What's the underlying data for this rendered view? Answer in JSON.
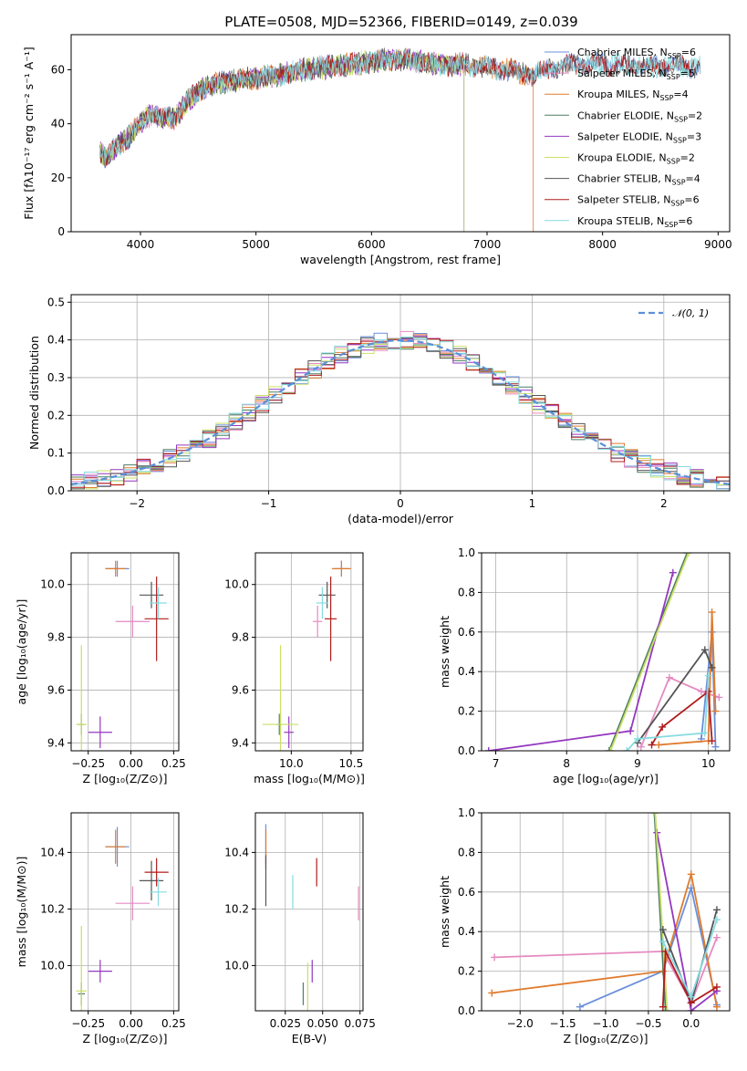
{
  "title": "PLATE=0508, MJD=52366, FIBERID=0149, z=0.039",
  "colors": {
    "Chabrier MILES": "#6a8fdb",
    "Salpeter MILES": "#e58ac0",
    "Kroupa MILES": "#e07b2c",
    "Chabrier ELODIE": "#4e7d62",
    "Salpeter ELODIE": "#9437c0",
    "Kroupa ELODIE": "#c8e066",
    "Chabrier STELIB": "#555555",
    "Salpeter STELIB": "#b01c1c",
    "Kroupa STELIB": "#86dbe0"
  },
  "chart_data": [
    {
      "id": "spectrum",
      "type": "line",
      "xlabel": "wavelength [Angstrom, rest frame]",
      "ylabel": "Flux [fλ10⁻¹⁷ erg cm⁻² s⁻¹ A⁻¹]",
      "xlim": [
        3400,
        9100
      ],
      "ylim": [
        0,
        73
      ],
      "xticks": [
        4000,
        5000,
        6000,
        7000,
        8000,
        9000
      ],
      "yticks": [
        0,
        20,
        40,
        60
      ],
      "legend_position": "top-right",
      "legend": [
        {
          "name": "Chabrier MILES",
          "nssp": "6"
        },
        {
          "name": "Salpeter MILES",
          "nssp": "5"
        },
        {
          "name": "Kroupa MILES",
          "nssp": "4"
        },
        {
          "name": "Chabrier ELODIE",
          "nssp": "2"
        },
        {
          "name": "Salpeter ELODIE",
          "nssp": "3"
        },
        {
          "name": "Kroupa ELODIE",
          "nssp": "2"
        },
        {
          "name": "Chabrier STELIB",
          "nssp": "4"
        },
        {
          "name": "Salpeter STELIB",
          "nssp": "6"
        },
        {
          "name": "Kroupa STELIB",
          "nssp": "6"
        }
      ],
      "continuum": {
        "x": [
          3650,
          3700,
          3800,
          3900,
          4000,
          4100,
          4200,
          4300,
          4400,
          4500,
          4600,
          4800,
          5000,
          5200,
          5400,
          5600,
          5800,
          6000,
          6200,
          6400,
          6600,
          6800,
          7000,
          7200,
          7400,
          7600,
          7800,
          8000,
          8200,
          8400,
          8600,
          8800
        ],
        "y": [
          30,
          27,
          32,
          35,
          40,
          44,
          42,
          42,
          48,
          52,
          54,
          56,
          57,
          58,
          60,
          61,
          62,
          63,
          64,
          63,
          62,
          62,
          61,
          60,
          58,
          61,
          62,
          62,
          62,
          61,
          62,
          61
        ]
      },
      "wavelength_end": {
        "Chabrier MILES": 8850,
        "Salpeter MILES": 7400,
        "Kroupa MILES": 7400,
        "Chabrier ELODIE": 6800,
        "Salpeter ELODIE": 6800,
        "Kroupa ELODIE": 6800,
        "Chabrier STELIB": 8850,
        "Salpeter STELIB": 8850,
        "Kroupa STELIB": 8850
      }
    },
    {
      "id": "residuals",
      "type": "histogram",
      "xlabel": "(data-model)/error",
      "ylabel": "Normed distribution",
      "xlim": [
        -2.5,
        2.5
      ],
      "ylim": [
        0,
        0.52
      ],
      "xticks": [
        -2,
        -1,
        0,
        1,
        2
      ],
      "yticks": [
        0.0,
        0.1,
        0.2,
        0.3,
        0.4,
        0.5
      ],
      "grid": true,
      "legend_position": "top-right",
      "reference_curve": "𝒩(0, 1)",
      "bin_width": 0.1
    },
    {
      "id": "age-vs-Z",
      "type": "scatter",
      "xlabel": "Z [log₁₀(Z/Z⊙)]",
      "ylabel": "age  [log₁₀(age/yr)]",
      "xlim": [
        -0.35,
        0.28
      ],
      "ylim": [
        9.37,
        10.12
      ],
      "xticks": [
        -0.25,
        0.0,
        0.25
      ],
      "yticks": [
        9.4,
        9.6,
        9.8,
        10.0
      ],
      "grid": true,
      "points": [
        {
          "model": "Chabrier MILES",
          "x": -0.08,
          "y": 10.06,
          "xerr": 0.07,
          "yerr": 0.03
        },
        {
          "model": "Salpeter MILES",
          "x": 0.01,
          "y": 9.86,
          "xerr": 0.1,
          "yerr": 0.06
        },
        {
          "model": "Kroupa MILES",
          "x": -0.09,
          "y": 10.06,
          "xerr": 0.06,
          "yerr": 0.03
        },
        {
          "model": "Chabrier ELODIE",
          "x": -0.29,
          "y": 9.47,
          "xerr": 0.02,
          "yerr": 0.04
        },
        {
          "model": "Salpeter ELODIE",
          "x": -0.18,
          "y": 9.44,
          "xerr": 0.07,
          "yerr": 0.06
        },
        {
          "model": "Kroupa ELODIE",
          "x": -0.29,
          "y": 9.47,
          "xerr": 0.03,
          "yerr": 0.3
        },
        {
          "model": "Chabrier STELIB",
          "x": 0.12,
          "y": 9.96,
          "xerr": 0.07,
          "yerr": 0.05
        },
        {
          "model": "Salpeter STELIB",
          "x": 0.15,
          "y": 9.87,
          "xerr": 0.07,
          "yerr": 0.16
        },
        {
          "model": "Kroupa STELIB",
          "x": 0.16,
          "y": 9.93,
          "xerr": 0.05,
          "yerr": 0.06
        }
      ]
    },
    {
      "id": "age-vs-mass",
      "type": "scatter",
      "xlabel": "mass [log₁₀(M/M⊙)]",
      "ylabel": "",
      "xlim": [
        9.7,
        10.6
      ],
      "ylim": [
        9.37,
        10.12
      ],
      "xticks": [
        10.0,
        10.5
      ],
      "yticks": [
        9.4,
        9.6,
        9.8,
        10.0
      ],
      "grid": true,
      "points": [
        {
          "model": "Chabrier MILES",
          "x": 10.42,
          "y": 10.06,
          "xerr": 0.06,
          "yerr": 0.03
        },
        {
          "model": "Salpeter MILES",
          "x": 10.22,
          "y": 9.86,
          "xerr": 0.04,
          "yerr": 0.06
        },
        {
          "model": "Kroupa MILES",
          "x": 10.42,
          "y": 10.06,
          "xerr": 0.08,
          "yerr": 0.03
        },
        {
          "model": "Chabrier ELODIE",
          "x": 9.9,
          "y": 9.47,
          "xerr": 0.02,
          "yerr": 0.04
        },
        {
          "model": "Salpeter ELODIE",
          "x": 9.98,
          "y": 9.44,
          "xerr": 0.04,
          "yerr": 0.06
        },
        {
          "model": "Kroupa ELODIE",
          "x": 9.91,
          "y": 9.47,
          "xerr": 0.15,
          "yerr": 0.3
        },
        {
          "model": "Chabrier STELIB",
          "x": 10.3,
          "y": 9.96,
          "xerr": 0.07,
          "yerr": 0.05
        },
        {
          "model": "Salpeter STELIB",
          "x": 10.33,
          "y": 9.87,
          "xerr": 0.05,
          "yerr": 0.16
        },
        {
          "model": "Kroupa STELIB",
          "x": 10.26,
          "y": 9.93,
          "xerr": 0.05,
          "yerr": 0.06
        }
      ]
    },
    {
      "id": "weight-vs-age",
      "type": "line",
      "xlabel": "age  [log₁₀(age/yr)]",
      "ylabel": "mass weight",
      "xlim": [
        6.8,
        10.3
      ],
      "ylim": [
        0,
        1.0
      ],
      "xticks": [
        7,
        8,
        9,
        10
      ],
      "yticks": [
        0.0,
        0.2,
        0.4,
        0.6,
        0.8,
        1.0
      ],
      "grid": true,
      "series": [
        {
          "model": "Chabrier MILES",
          "x": [
            9.9,
            10.05,
            10.1
          ],
          "y": [
            0.06,
            0.6,
            0.02
          ]
        },
        {
          "model": "Salpeter MILES",
          "x": [
            9.05,
            9.45,
            9.9,
            10.15
          ],
          "y": [
            0.02,
            0.37,
            0.3,
            0.27
          ]
        },
        {
          "model": "Kroupa MILES",
          "x": [
            9.3,
            10.0,
            10.05,
            10.1
          ],
          "y": [
            0.03,
            0.05,
            0.7,
            0.2
          ]
        },
        {
          "model": "Chabrier ELODIE",
          "x": [
            8.6,
            9.7
          ],
          "y": [
            0.0,
            1.0
          ]
        },
        {
          "model": "Salpeter ELODIE",
          "x": [
            6.9,
            8.9,
            9.5
          ],
          "y": [
            0.0,
            0.1,
            0.9
          ]
        },
        {
          "model": "Kroupa ELODIE",
          "x": [
            8.62,
            9.72
          ],
          "y": [
            0.0,
            1.0
          ]
        },
        {
          "model": "Chabrier STELIB",
          "x": [
            9.0,
            9.95,
            10.05
          ],
          "y": [
            0.04,
            0.51,
            0.42
          ]
        },
        {
          "model": "Salpeter STELIB",
          "x": [
            9.2,
            9.35,
            10.0,
            10.05
          ],
          "y": [
            0.03,
            0.12,
            0.3,
            0.05
          ]
        },
        {
          "model": "Kroupa STELIB",
          "x": [
            8.85,
            9.0,
            9.95,
            10.0
          ],
          "y": [
            0.0,
            0.06,
            0.09,
            0.38
          ]
        }
      ]
    },
    {
      "id": "mass-vs-Z",
      "type": "scatter",
      "xlabel": "Z [log₁₀(Z/Z⊙)]",
      "ylabel": "mass [log₁₀(M/M⊙)]",
      "xlim": [
        -0.35,
        0.28
      ],
      "ylim": [
        9.84,
        10.54
      ],
      "xticks": [
        -0.25,
        0.0,
        0.25
      ],
      "yticks": [
        10.0,
        10.2,
        10.4
      ],
      "grid": true,
      "points": [
        {
          "model": "Chabrier MILES",
          "x": -0.08,
          "y": 10.42,
          "xerr": 0.07,
          "yerr": 0.07
        },
        {
          "model": "Salpeter MILES",
          "x": 0.01,
          "y": 10.22,
          "xerr": 0.1,
          "yerr": 0.06
        },
        {
          "model": "Kroupa MILES",
          "x": -0.09,
          "y": 10.42,
          "xerr": 0.06,
          "yerr": 0.06
        },
        {
          "model": "Chabrier ELODIE",
          "x": -0.29,
          "y": 9.9,
          "xerr": 0.02,
          "yerr": 0.04
        },
        {
          "model": "Salpeter ELODIE",
          "x": -0.18,
          "y": 9.98,
          "xerr": 0.07,
          "yerr": 0.04
        },
        {
          "model": "Kroupa ELODIE",
          "x": -0.29,
          "y": 9.91,
          "xerr": 0.03,
          "yerr": 0.23
        },
        {
          "model": "Chabrier STELIB",
          "x": 0.12,
          "y": 10.3,
          "xerr": 0.07,
          "yerr": 0.07
        },
        {
          "model": "Salpeter STELIB",
          "x": 0.15,
          "y": 10.33,
          "xerr": 0.07,
          "yerr": 0.05
        },
        {
          "model": "Kroupa STELIB",
          "x": 0.16,
          "y": 10.26,
          "xerr": 0.05,
          "yerr": 0.05
        }
      ]
    },
    {
      "id": "mass-vs-EBV",
      "type": "scatter",
      "xlabel": "E(B-V)",
      "ylabel": "",
      "xlim": [
        0.005,
        0.077
      ],
      "ylim": [
        9.84,
        10.54
      ],
      "xticks": [
        0.025,
        0.05,
        0.075
      ],
      "xticklabels": [
        "0.025",
        "0.050",
        "0.075"
      ],
      "yticks": [
        10.0,
        10.2,
        10.4
      ],
      "grid": true,
      "points": [
        {
          "model": "Chabrier MILES",
          "x": 0.012,
          "y": 10.42,
          "xerr": 0,
          "yerr": 0.08
        },
        {
          "model": "Salpeter MILES",
          "x": 0.074,
          "y": 10.22,
          "xerr": 0,
          "yerr": 0.06
        },
        {
          "model": "Kroupa MILES",
          "x": 0.012,
          "y": 10.42,
          "xerr": 0,
          "yerr": 0.06
        },
        {
          "model": "Chabrier ELODIE",
          "x": 0.037,
          "y": 9.9,
          "xerr": 0,
          "yerr": 0.04
        },
        {
          "model": "Salpeter ELODIE",
          "x": 0.043,
          "y": 9.98,
          "xerr": 0,
          "yerr": 0.04
        },
        {
          "model": "Kroupa ELODIE",
          "x": 0.04,
          "y": 9.91,
          "xerr": 0,
          "yerr": 0.1
        },
        {
          "model": "Chabrier STELIB",
          "x": 0.012,
          "y": 10.3,
          "xerr": 0,
          "yerr": 0.09
        },
        {
          "model": "Salpeter STELIB",
          "x": 0.046,
          "y": 10.33,
          "xerr": 0,
          "yerr": 0.05
        },
        {
          "model": "Kroupa STELIB",
          "x": 0.03,
          "y": 10.26,
          "xerr": 0,
          "yerr": 0.06
        }
      ]
    },
    {
      "id": "weight-vs-Z",
      "type": "line",
      "xlabel": "Z [log₁₀(Z/Z⊙)]",
      "ylabel": "mass weight",
      "xlim": [
        -2.45,
        0.45
      ],
      "ylim": [
        0,
        1.0
      ],
      "xticks": [
        -2.0,
        -1.5,
        -1.0,
        -0.5,
        0.0
      ],
      "xticklabels": [
        "−2.0",
        "−1.5",
        "−1.0",
        "−0.5",
        "0.0"
      ],
      "yticks": [
        0.0,
        0.2,
        0.4,
        0.6,
        0.8,
        1.0
      ],
      "grid": true,
      "series": [
        {
          "model": "Chabrier MILES",
          "x": [
            -1.3,
            -0.33,
            0.0,
            0.3
          ],
          "y": [
            0.02,
            0.2,
            0.62,
            0.03
          ]
        },
        {
          "model": "Salpeter MILES",
          "x": [
            -2.3,
            -0.33,
            0.0,
            0.3
          ],
          "y": [
            0.27,
            0.3,
            0.04,
            0.37
          ]
        },
        {
          "model": "Kroupa MILES",
          "x": [
            -2.33,
            -0.33,
            0.0,
            0.3
          ],
          "y": [
            0.09,
            0.2,
            0.69,
            0.02
          ]
        },
        {
          "model": "Chabrier ELODIE",
          "x": [
            -0.43,
            -0.3
          ],
          "y": [
            1.0,
            0.0
          ]
        },
        {
          "model": "Salpeter ELODIE",
          "x": [
            -0.4,
            0.0,
            0.3
          ],
          "y": [
            0.9,
            0.0,
            0.1
          ]
        },
        {
          "model": "Kroupa ELODIE",
          "x": [
            -0.42,
            -0.28
          ],
          "y": [
            1.0,
            0.0
          ]
        },
        {
          "model": "Chabrier STELIB",
          "x": [
            -0.33,
            0.0,
            0.3
          ],
          "y": [
            0.41,
            0.04,
            0.51
          ]
        },
        {
          "model": "Salpeter STELIB",
          "x": [
            -0.33,
            -0.3,
            0.0,
            0.3
          ],
          "y": [
            0.02,
            0.3,
            0.04,
            0.12
          ]
        },
        {
          "model": "Kroupa STELIB",
          "x": [
            -0.33,
            0.0,
            0.3
          ],
          "y": [
            0.35,
            0.07,
            0.46
          ]
        }
      ]
    }
  ]
}
